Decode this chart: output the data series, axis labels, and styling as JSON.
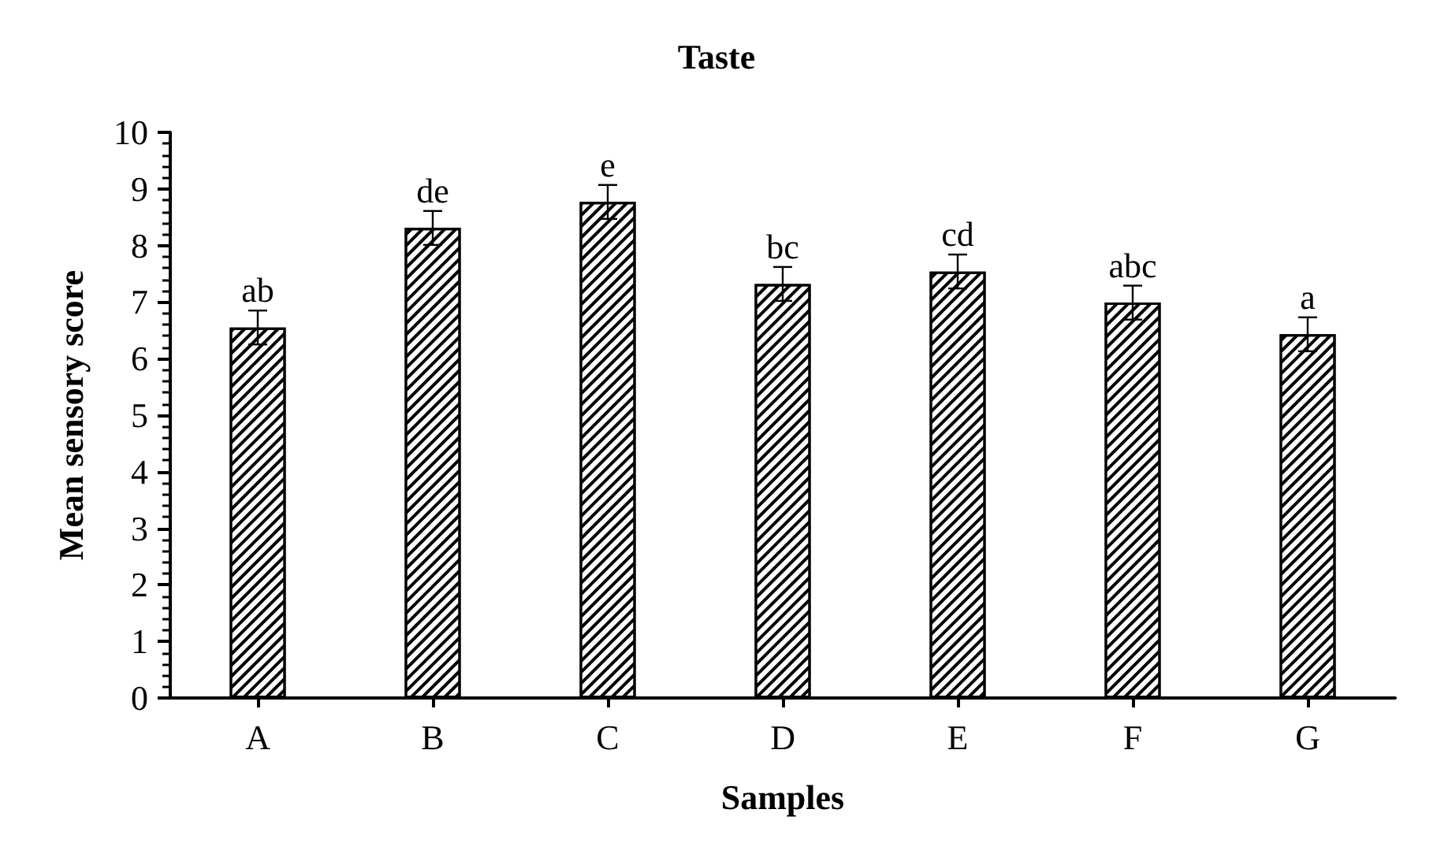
{
  "chart_data": {
    "type": "bar",
    "title": "Taste",
    "xlabel": "Samples",
    "ylabel": "Mean sensory score",
    "categories": [
      "A",
      "B",
      "C",
      "D",
      "E",
      "F",
      "G"
    ],
    "values": [
      6.55,
      8.31,
      8.77,
      7.32,
      7.54,
      6.99,
      6.43
    ],
    "errors": [
      0.3,
      0.3,
      0.3,
      0.3,
      0.3,
      0.3,
      0.3
    ],
    "color": "#000000",
    "ylim": [
      0,
      10
    ],
    "yticks": [
      0,
      1,
      2,
      3,
      4,
      5,
      6,
      7,
      8,
      9,
      10
    ],
    "grid": false,
    "annotations": [
      {
        "text": "ab",
        "x": "A",
        "y": 6.85
      },
      {
        "text": "de",
        "x": "B",
        "y": 8.61
      },
      {
        "text": "e",
        "x": "C",
        "y": 9.07
      },
      {
        "text": "bc",
        "x": "D",
        "y": 7.62
      },
      {
        "text": "cd",
        "x": "E",
        "y": 7.84
      },
      {
        "text": "abc",
        "x": "F",
        "y": 7.29
      },
      {
        "text": "a",
        "x": "G",
        "y": 6.73
      }
    ]
  }
}
